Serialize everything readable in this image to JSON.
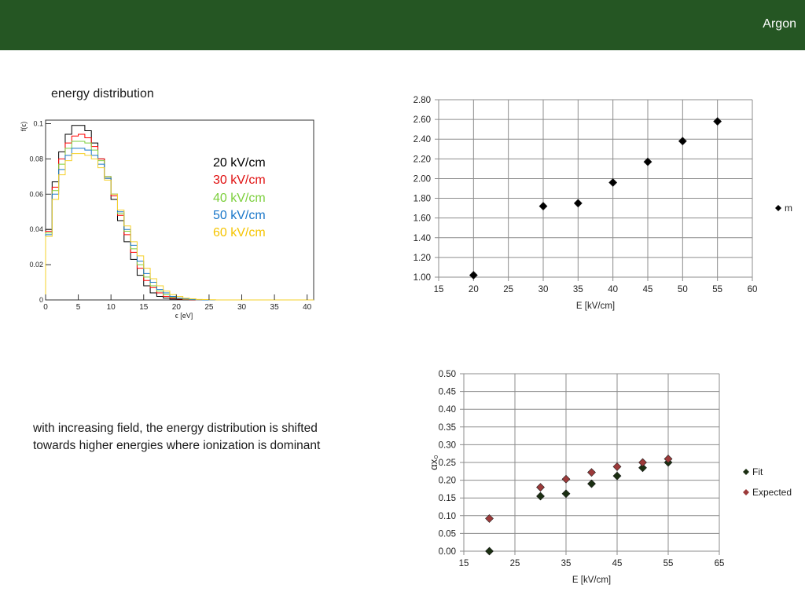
{
  "header": {
    "title": "Argon"
  },
  "slide": {
    "subtitle": "energy distribution",
    "caption_lines": [
      "with increasing field, the energy distribution is shifted",
      "towards higher energies where ionization is dominant"
    ]
  },
  "colors": {
    "header_bg": "#255623",
    "series_dark": "#1b2f12",
    "series_red": "#9c3a3a"
  },
  "chart_data": [
    {
      "type": "line",
      "xlabel": "ϵ [eV]",
      "ylabel": "f(ϵ)",
      "xlim": [
        0,
        41
      ],
      "ylim": [
        0,
        0.102
      ],
      "xticks": [
        0,
        5,
        10,
        15,
        20,
        25,
        30,
        35,
        40
      ],
      "yticks": [
        0,
        0.02,
        0.04,
        0.06,
        0.08,
        0.1
      ],
      "ytick_labels": [
        "0",
        "0.02",
        "0.04",
        "0.06",
        "0.08",
        "0.1"
      ],
      "bin_edges": [
        0,
        1,
        2,
        3,
        4,
        5,
        6,
        7,
        8,
        9,
        10,
        11,
        12,
        13,
        14,
        15,
        16,
        17,
        18,
        19,
        20,
        21,
        22,
        23,
        24,
        25,
        26,
        27,
        28,
        29,
        30,
        31,
        32,
        33,
        34,
        35,
        36,
        37,
        38,
        39,
        40,
        41
      ],
      "series": [
        {
          "name": "20 kV/cm",
          "color": "#000000",
          "values": [
            0.04,
            0.067,
            0.084,
            0.094,
            0.099,
            0.099,
            0.096,
            0.089,
            0.08,
            0.069,
            0.057,
            0.045,
            0.033,
            0.023,
            0.014,
            0.008,
            0.004,
            0.002,
            0.001,
            0.0005,
            0.0002,
            0.0001,
            0,
            0,
            0,
            0,
            0,
            0,
            0,
            0,
            0,
            0,
            0,
            0,
            0,
            0,
            0,
            0,
            0,
            0,
            0
          ]
        },
        {
          "name": "30 kV/cm",
          "color": "#ff0000",
          "values": [
            0.039,
            0.064,
            0.08,
            0.089,
            0.093,
            0.094,
            0.092,
            0.087,
            0.08,
            0.07,
            0.059,
            0.048,
            0.037,
            0.027,
            0.018,
            0.011,
            0.007,
            0.004,
            0.002,
            0.001,
            0.0005,
            0.0002,
            0.0001,
            0,
            0,
            0,
            0,
            0,
            0,
            0,
            0,
            0,
            0,
            0,
            0,
            0,
            0,
            0,
            0,
            0,
            0
          ]
        },
        {
          "name": "40 kV/cm",
          "color": "#7ccf3c",
          "values": [
            0.038,
            0.062,
            0.077,
            0.086,
            0.09,
            0.09,
            0.089,
            0.085,
            0.079,
            0.07,
            0.06,
            0.049,
            0.039,
            0.029,
            0.02,
            0.013,
            0.008,
            0.005,
            0.003,
            0.0015,
            0.0008,
            0.0004,
            0.0002,
            0.0001,
            0,
            0,
            0,
            0,
            0,
            0,
            0,
            0,
            0,
            0,
            0,
            0,
            0,
            0,
            0,
            0,
            0
          ]
        },
        {
          "name": "50 kV/cm",
          "color": "#1a77c9",
          "values": [
            0.037,
            0.06,
            0.074,
            0.082,
            0.086,
            0.086,
            0.085,
            0.082,
            0.077,
            0.069,
            0.06,
            0.05,
            0.04,
            0.031,
            0.022,
            0.015,
            0.01,
            0.006,
            0.004,
            0.002,
            0.001,
            0.0006,
            0.0003,
            0.0001,
            0,
            0,
            0,
            0,
            0,
            0,
            0,
            0,
            0,
            0,
            0,
            0,
            0,
            0,
            0,
            0,
            0
          ]
        },
        {
          "name": "60 kV/cm",
          "color": "#f5d02a",
          "values": [
            0.036,
            0.057,
            0.071,
            0.079,
            0.083,
            0.083,
            0.082,
            0.08,
            0.075,
            0.068,
            0.06,
            0.051,
            0.042,
            0.033,
            0.025,
            0.018,
            0.012,
            0.008,
            0.005,
            0.003,
            0.002,
            0.001,
            0.0006,
            0.0003,
            0.0002,
            0.0001,
            0,
            0,
            0,
            0,
            0,
            0,
            0,
            0,
            0,
            0,
            0,
            0,
            0,
            0,
            0
          ]
        }
      ]
    },
    {
      "type": "scatter",
      "xlabel": "E [kV/cm]",
      "ylabel": "",
      "xlim": [
        15,
        60
      ],
      "ylim": [
        1.0,
        2.8
      ],
      "xticks": [
        15,
        20,
        25,
        30,
        35,
        40,
        45,
        50,
        55,
        60
      ],
      "yticks": [
        1.0,
        1.2,
        1.4,
        1.6,
        1.8,
        2.0,
        2.2,
        2.4,
        2.6,
        2.8
      ],
      "ytick_labels": [
        "1.00",
        "1.20",
        "1.40",
        "1.60",
        "1.80",
        "2.00",
        "2.20",
        "2.40",
        "2.60",
        "2.80"
      ],
      "grid": true,
      "legend": "right",
      "series": [
        {
          "name": "m",
          "color": "#000000",
          "x": [
            20,
            30,
            35,
            40,
            45,
            50,
            55
          ],
          "y": [
            1.02,
            1.72,
            1.75,
            1.96,
            2.17,
            2.38,
            2.58
          ]
        }
      ]
    },
    {
      "type": "scatter",
      "xlabel": "E [kV/cm]",
      "ylabel": "αx₀",
      "xlim": [
        15,
        65
      ],
      "ylim": [
        0,
        0.5
      ],
      "xticks": [
        15,
        25,
        35,
        45,
        55,
        65
      ],
      "yticks": [
        0,
        0.05,
        0.1,
        0.15,
        0.2,
        0.25,
        0.3,
        0.35,
        0.4,
        0.45,
        0.5
      ],
      "ytick_labels": [
        "0.00",
        "0.05",
        "0.10",
        "0.15",
        "0.20",
        "0.25",
        "0.30",
        "0.35",
        "0.40",
        "0.45",
        "0.50"
      ],
      "grid": true,
      "legend": "right",
      "series": [
        {
          "name": "Fit",
          "color": "#1b2f12",
          "x": [
            20,
            30,
            35,
            40,
            45,
            50,
            55
          ],
          "y": [
            0.0,
            0.155,
            0.162,
            0.19,
            0.212,
            0.235,
            0.25
          ]
        },
        {
          "name": "Expected",
          "color": "#9c3a3a",
          "x": [
            20,
            30,
            35,
            40,
            45,
            50,
            55
          ],
          "y": [
            0.092,
            0.18,
            0.203,
            0.222,
            0.238,
            0.25,
            0.26
          ]
        }
      ]
    }
  ]
}
